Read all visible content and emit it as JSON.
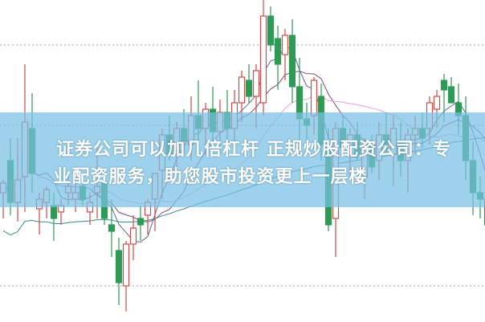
{
  "caption": {
    "line1": "证券公司可以加几倍杠杆 正规炒股配资公司：专",
    "line2": "业配资服务，助您股市投资更上一层楼"
  },
  "colors": {
    "up": "#d04a4a",
    "down": "#2e9a55",
    "grid": "#9aa0a6",
    "banner": "#78c0e4",
    "ma": [
      "#5a6a8a",
      "#8a4a7a",
      "#e8a0e0",
      "#3a8a8a"
    ]
  },
  "chart_data": {
    "type": "candlestick",
    "ylim": [
      0,
      100
    ],
    "grid": true,
    "gridlines": [
      86,
      61,
      11
    ],
    "moving_averages": [
      5,
      10,
      20,
      60
    ],
    "candles": [
      [
        40,
        44,
        32,
        43
      ],
      [
        50,
        57,
        33,
        37
      ],
      [
        37,
        57,
        31,
        44
      ],
      [
        45,
        80,
        34,
        62
      ],
      [
        60,
        71,
        40,
        46
      ],
      [
        35,
        40,
        27,
        38
      ],
      [
        37,
        42,
        32,
        41
      ],
      [
        36,
        40,
        25,
        32
      ],
      [
        34,
        38,
        30,
        36
      ],
      [
        40,
        46,
        36,
        42
      ],
      [
        38,
        48,
        34,
        40
      ],
      [
        42,
        46,
        36,
        38
      ],
      [
        34,
        40,
        30,
        37
      ],
      [
        40,
        55,
        32,
        42
      ],
      [
        43,
        47,
        30,
        32
      ],
      [
        30,
        38,
        20,
        28
      ],
      [
        22,
        26,
        5,
        12
      ],
      [
        11,
        25,
        3,
        24
      ],
      [
        24,
        33,
        19,
        29
      ],
      [
        32,
        36,
        25,
        30
      ],
      [
        33,
        38,
        27,
        37
      ],
      [
        38,
        46,
        28,
        46
      ],
      [
        47,
        60,
        38,
        58
      ],
      [
        58,
        64,
        50,
        52
      ],
      [
        52,
        62,
        46,
        60
      ],
      [
        60,
        66,
        52,
        56
      ],
      [
        55,
        70,
        50,
        64
      ],
      [
        64,
        75,
        56,
        60
      ],
      [
        60,
        68,
        52,
        66
      ],
      [
        66,
        73,
        55,
        59
      ],
      [
        59,
        69,
        52,
        65
      ],
      [
        65,
        72,
        54,
        60
      ],
      [
        60,
        72,
        55,
        68
      ],
      [
        68,
        78,
        62,
        76
      ],
      [
        75,
        80,
        68,
        70
      ],
      [
        70,
        80,
        60,
        78
      ],
      [
        68,
        100,
        64,
        95
      ],
      [
        95,
        98,
        84,
        86
      ],
      [
        88,
        92,
        72,
        80
      ],
      [
        83,
        91,
        75,
        89
      ],
      [
        89,
        94,
        68,
        73
      ],
      [
        73,
        82,
        55,
        63
      ],
      [
        63,
        68,
        52,
        61
      ],
      [
        64,
        76,
        58,
        75
      ],
      [
        70,
        74,
        50,
        55
      ],
      [
        55,
        60,
        28,
        30
      ],
      [
        32,
        62,
        20,
        60
      ],
      [
        60,
        64,
        52,
        54
      ],
      [
        54,
        60,
        45,
        58
      ],
      [
        58,
        62,
        50,
        52
      ],
      [
        45,
        57,
        38,
        55
      ],
      [
        55,
        58,
        46,
        48
      ],
      [
        50,
        62,
        44,
        58
      ],
      [
        58,
        65,
        52,
        55
      ],
      [
        52,
        64,
        42,
        60
      ],
      [
        56,
        62,
        45,
        50
      ],
      [
        50,
        60,
        40,
        58
      ],
      [
        58,
        64,
        52,
        60
      ],
      [
        60,
        65,
        54,
        57
      ],
      [
        60,
        70,
        55,
        68
      ],
      [
        66,
        72,
        60,
        70
      ],
      [
        75,
        77,
        62,
        72
      ],
      [
        73,
        76,
        68,
        68
      ],
      [
        68,
        74,
        58,
        64
      ],
      [
        64,
        70,
        44,
        50
      ],
      [
        50,
        56,
        33,
        40
      ],
      [
        40,
        45,
        32,
        38
      ],
      [
        38,
        42,
        28,
        30
      ]
    ]
  }
}
